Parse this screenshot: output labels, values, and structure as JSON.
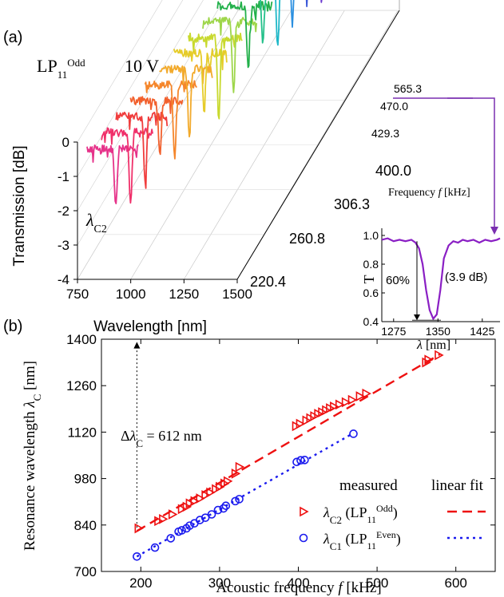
{
  "panel_a": {
    "label": "(a)",
    "mode_label": {
      "base": "LP",
      "sub": "11",
      "sup": "Odd"
    },
    "voltage": "10 V",
    "ylabel": "Transmission [dB]",
    "xlabel": "Wavelength [nm]",
    "z_label_prefix": "Frequency ",
    "z_label_var": "f",
    "z_label_unit": " [kHz]",
    "annotation": {
      "var": "λ",
      "sub": "C2"
    },
    "y_ticks": [
      "0",
      "-1",
      "-2",
      "-3",
      "-4"
    ],
    "x_ticks": [
      "750",
      "1000",
      "1250",
      "1500"
    ],
    "z_ticks": [
      "220.4",
      "260.8",
      "306.3",
      "400.0",
      "429.3",
      "470.0",
      "565.3"
    ],
    "inset": {
      "ylabel": "T",
      "xlabel_var": "λ",
      "xlabel_unit": " [nm]",
      "x_ticks": [
        "1275",
        "1350",
        "1425"
      ],
      "y_ticks": [
        "1.0",
        "0.8",
        "0.6",
        "0.4"
      ],
      "depth_label": "60%",
      "db_label": "(3.9 dB)"
    },
    "colors": [
      "#e6338a",
      "#f0306a",
      "#f03c3c",
      "#f2602d",
      "#f5862b",
      "#f2aa2c",
      "#e6cc2a",
      "#c8d92e",
      "#9ed64a",
      "#22b04a",
      "#24c08a",
      "#1fb8c8",
      "#2a8fe0",
      "#3a58d8",
      "#6a3ad0",
      "#9b32c8",
      "#c22fa8",
      "#e23a8c"
    ]
  },
  "chart_data": [
    {
      "type": "line",
      "title": "",
      "xlabel": "Wavelength [nm]",
      "ylabel": "Transmission [dB]",
      "xlim": [
        750,
        1500
      ],
      "ylim": [
        -4,
        0.5
      ],
      "series": [
        {
          "frequency_khz": 220.4,
          "dip_wavelength_nm": 930,
          "dip_depth_db": -2.3
        },
        {
          "frequency_khz": 260.8,
          "dip_wavelength_nm": 1010,
          "dip_depth_db": -1.6
        },
        {
          "frequency_khz": 306.3,
          "dip_wavelength_nm": 1060,
          "dip_depth_db": -2.0
        },
        {
          "frequency_khz": 400.0,
          "dip_wavelength_nm": 1150,
          "dip_depth_db": -2.3
        },
        {
          "frequency_khz": 429.3,
          "dip_wavelength_nm": 1185,
          "dip_depth_db": -2.0
        },
        {
          "frequency_khz": 470.0,
          "dip_wavelength_nm": 1240,
          "dip_depth_db": -2.3
        },
        {
          "frequency_khz": 565.3,
          "dip_wavelength_nm": 1350,
          "dip_depth_db": -2.1
        }
      ]
    },
    {
      "type": "line",
      "title": "",
      "xlabel": "λ [nm]",
      "ylabel": "T",
      "xlim": [
        1255,
        1455
      ],
      "ylim": [
        0.4,
        1.05
      ],
      "x": [
        1255,
        1265,
        1275,
        1285,
        1295,
        1305,
        1312,
        1318,
        1324,
        1330,
        1336,
        1342,
        1348,
        1354,
        1360,
        1368,
        1376,
        1384,
        1392,
        1400,
        1410,
        1420,
        1430,
        1440,
        1450,
        1455
      ],
      "y": [
        0.97,
        0.98,
        0.96,
        0.97,
        0.96,
        0.97,
        0.95,
        0.91,
        0.8,
        0.62,
        0.48,
        0.42,
        0.45,
        0.62,
        0.84,
        0.93,
        0.96,
        0.95,
        0.97,
        0.96,
        0.97,
        0.95,
        0.97,
        0.96,
        0.97,
        0.98
      ]
    },
    {
      "type": "scatter",
      "title": "",
      "xlabel": "Acoustic frequency f [kHz]",
      "ylabel": "Resonance wavelength λC [nm]",
      "xlim": [
        150,
        650
      ],
      "ylim": [
        700,
        1400
      ],
      "x_ticks": [
        200,
        300,
        400,
        500,
        600
      ],
      "y_ticks": [
        700,
        840,
        980,
        1120,
        1260,
        1400
      ],
      "legend": {
        "measured": "measured",
        "fit": "linear fit"
      },
      "series": [
        {
          "name": "λC2 (LP11Odd)",
          "color": "#ee1111",
          "marker": "triangle-right",
          "x": [
            197,
            222,
            228,
            240,
            252,
            258,
            262,
            268,
            275,
            282,
            288,
            295,
            300,
            306,
            310,
            320,
            325,
            397,
            402,
            410,
            415,
            420,
            425,
            430,
            435,
            440,
            445,
            452,
            460,
            468,
            478,
            486,
            562,
            565,
            578
          ],
          "y": [
            830,
            852,
            858,
            872,
            888,
            895,
            905,
            912,
            920,
            930,
            938,
            948,
            955,
            965,
            972,
            995,
            1015,
            1138,
            1145,
            1155,
            1162,
            1168,
            1175,
            1180,
            1186,
            1192,
            1197,
            1203,
            1210,
            1217,
            1228,
            1236,
            1330,
            1338,
            1352
          ]
        },
        {
          "name": "λC1 (LP11Even)",
          "color": "#1a1aee",
          "marker": "circle",
          "x": [
            195,
            218,
            238,
            248,
            252,
            258,
            262,
            268,
            275,
            282,
            290,
            298,
            305,
            308,
            320,
            325,
            398,
            403,
            408,
            470
          ],
          "y": [
            745,
            772,
            800,
            820,
            824,
            830,
            838,
            845,
            855,
            862,
            872,
            885,
            890,
            898,
            912,
            918,
            1030,
            1035,
            1036,
            1115
          ]
        }
      ],
      "fit_lines": [
        {
          "series": "λC2 (LP11Odd)",
          "color": "#ee1111",
          "dash": "dash",
          "x": [
            195,
            580
          ],
          "y": [
            822,
            1355
          ]
        },
        {
          "series": "λC1 (LP11Even)",
          "color": "#1a1aee",
          "dash": "dot",
          "x": [
            195,
            470
          ],
          "y": [
            745,
            1117
          ]
        }
      ],
      "delta_label": "ΔλC = 612 nm"
    }
  ],
  "panel_b": {
    "label": "(b)",
    "xlabel_text": "Acoustic frequency ",
    "xlabel_var": "f",
    "xlabel_unit": " [kHz]",
    "ylabel_text": "Resonance wavelength ",
    "ylabel_var": "λ",
    "ylabel_sub": "C",
    "ylabel_unit": " [nm]",
    "delta": {
      "pre": "Δ",
      "var": "λ",
      "sub": "C",
      "post": " = 612 nm"
    },
    "legend_measured": "measured",
    "legend_fit": "linear fit",
    "legend_red": {
      "var": "λ",
      "sub": "C2",
      "mode": "(LP",
      "mode_sub": "11",
      "mode_sup": "Odd",
      "close": ")"
    },
    "legend_blue": {
      "var": "λ",
      "sub": "C1",
      "mode": "(LP",
      "mode_sub": "11",
      "mode_sup": "Even",
      "close": ")"
    }
  }
}
